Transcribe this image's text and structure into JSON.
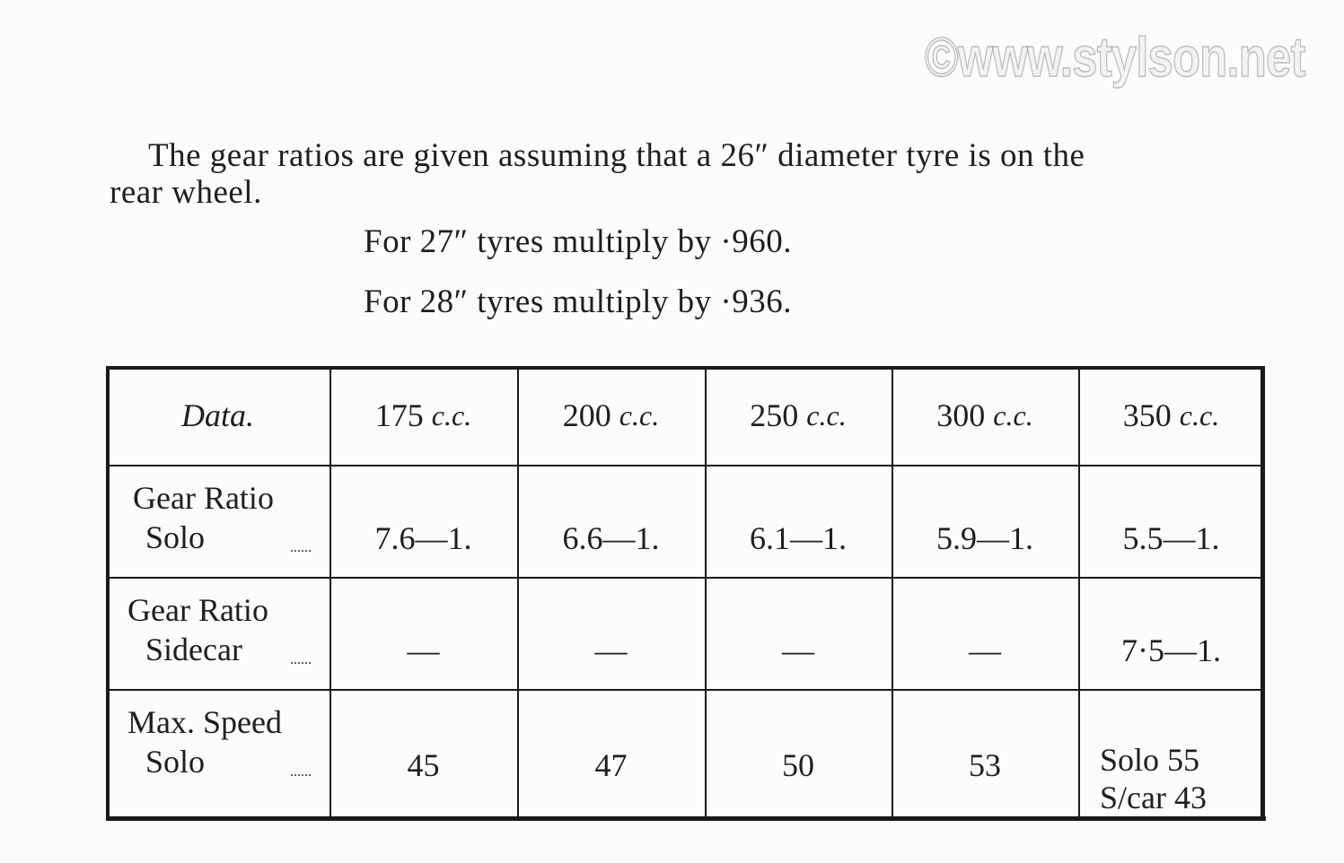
{
  "intro": {
    "line1": "The gear ratios are given assuming that a 26″ diameter tyre is on the",
    "line2": "rear wheel.",
    "line3": "For 27″ tyres multiply by ·960.",
    "line4": "For 28″ tyres multiply by ·936."
  },
  "table": {
    "header": {
      "label": "Data.",
      "columns": [
        {
          "num": "175",
          "unit": "c.c."
        },
        {
          "num": "200",
          "unit": "c.c."
        },
        {
          "num": "250",
          "unit": "c.c."
        },
        {
          "num": "300",
          "unit": "c.c."
        },
        {
          "num": "350",
          "unit": "c.c."
        }
      ]
    },
    "rows": [
      {
        "label1": "Gear Ratio",
        "label2": "Solo",
        "dots": "......",
        "values": [
          "7.6—1.",
          "6.6—1.",
          "6.1—1.",
          "5.9—1.",
          "5.5—1."
        ]
      },
      {
        "label1": "Gear Ratio",
        "label2": "Sidecar",
        "dots": "......",
        "values": [
          "—",
          "—",
          "—",
          "—",
          "7·5—1."
        ]
      },
      {
        "label1": "Max. Speed",
        "label2": "Solo",
        "dots": "......",
        "values": [
          "45",
          "47",
          "50",
          "53",
          "Solo 55\nS/car 43"
        ]
      }
    ]
  },
  "watermark": "©www.stylson.net"
}
